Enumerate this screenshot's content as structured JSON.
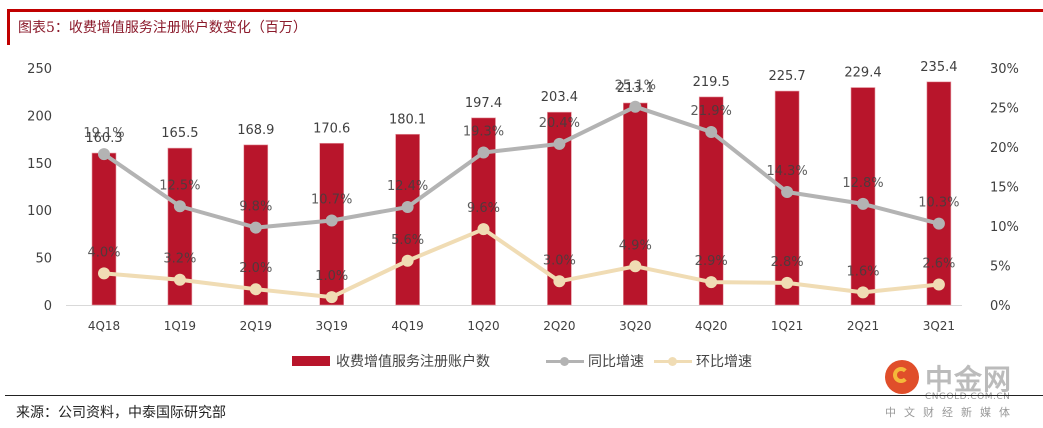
{
  "header": {
    "title": "图表5：收费增值服务注册账户数变化（百万）"
  },
  "footer": {
    "source": "来源：公司资料，中泰国际研究部"
  },
  "watermark": {
    "name": "中金网",
    "domain": "CNGOLD.COM.CN",
    "tagline": "中文财经新媒体"
  },
  "colors": {
    "bar": "#b8152b",
    "yoy_line": "#b3b3b3",
    "qoq_line": "#f0dcb4",
    "axis_text": "#404040",
    "label_text": "#404040",
    "title_red": "#c00000"
  },
  "chart_data": {
    "type": "bar+line",
    "title": "图表5：收费增值服务注册账户数变化（百万）",
    "categories": [
      "4Q18",
      "1Q19",
      "2Q19",
      "3Q19",
      "4Q19",
      "1Q20",
      "2Q20",
      "3Q20",
      "4Q20",
      "1Q21",
      "2Q21",
      "3Q21"
    ],
    "series": [
      {
        "name": "收费增值服务注册账户数",
        "type": "bar",
        "axis": "left",
        "values": [
          160.3,
          165.5,
          168.9,
          170.6,
          180.1,
          197.4,
          203.4,
          213.1,
          219.5,
          225.7,
          229.4,
          235.4
        ],
        "labels": [
          "160.3",
          "165.5",
          "168.9",
          "170.6",
          "180.1",
          "197.4",
          "203.4",
          "213.1",
          "219.5",
          "225.7",
          "229.4",
          "235.4"
        ]
      },
      {
        "name": "同比增速",
        "type": "line",
        "axis": "right",
        "values": [
          19.1,
          12.5,
          9.8,
          10.7,
          12.4,
          19.3,
          20.4,
          25.1,
          21.9,
          14.3,
          12.8,
          10.3
        ],
        "labels": [
          "19.1%",
          "12.5%",
          "9.8%",
          "10.7%",
          "12.4%",
          "19.3%",
          "20.4%",
          "25.1%",
          "21.9%",
          "14.3%",
          "12.8%",
          "10.3%"
        ]
      },
      {
        "name": "环比增速",
        "type": "line",
        "axis": "right",
        "values": [
          4.0,
          3.2,
          2.0,
          1.0,
          5.6,
          9.6,
          3.0,
          4.9,
          2.9,
          2.8,
          1.6,
          2.6
        ],
        "labels": [
          "4.0%",
          "3.2%",
          "2.0%",
          "1.0%",
          "5.6%",
          "9.6%",
          "3.0%",
          "4.9%",
          "2.9%",
          "2.8%",
          "1.6%",
          "2.6%"
        ]
      }
    ],
    "left_axis": {
      "ylim": [
        0,
        250
      ],
      "ticks": [
        0,
        50,
        100,
        150,
        200,
        250
      ],
      "tick_labels": [
        "0",
        "50",
        "100",
        "150",
        "200",
        "250"
      ]
    },
    "right_axis": {
      "ylim": [
        0,
        30
      ],
      "ticks": [
        0,
        5,
        10,
        15,
        20,
        25,
        30
      ],
      "tick_labels": [
        "0%",
        "5%",
        "10%",
        "15%",
        "20%",
        "25%",
        "30%"
      ]
    },
    "grid": false,
    "legend": {
      "position": "bottom",
      "entries": [
        "收费增值服务注册账户数",
        "同比增速",
        "环比增速"
      ]
    }
  }
}
